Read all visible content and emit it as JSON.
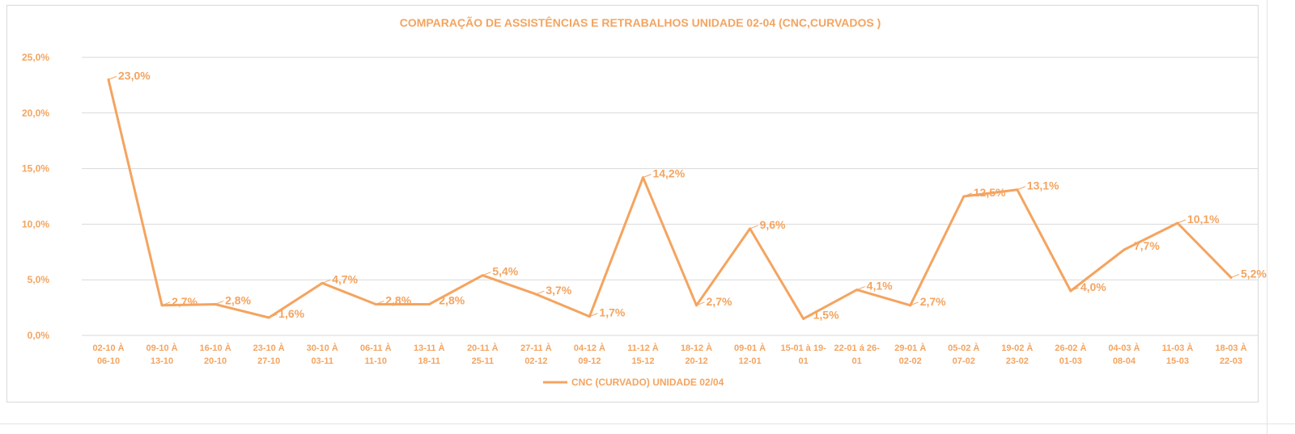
{
  "chart_data": {
    "type": "line",
    "title": "COMPARAÇÃO DE ASSISTÊNCIAS E RETRABALHOS UNIDADE 02-04  (CNC,CURVADOS )",
    "xlabel": "",
    "ylabel": "",
    "ylim": [
      0,
      25
    ],
    "yticks": [
      "0,0%",
      "5,0%",
      "10,0%",
      "15,0%",
      "20,0%",
      "25,0%"
    ],
    "grid": true,
    "legend_position": "bottom",
    "line_color": "#f4a460",
    "categories": [
      [
        "02-10 À",
        "06-10"
      ],
      [
        "09-10 À",
        "13-10"
      ],
      [
        "16-10 À",
        "20-10"
      ],
      [
        "23-10 À",
        "27-10"
      ],
      [
        "30-10 À",
        "03-11"
      ],
      [
        "06-11 À",
        "11-10"
      ],
      [
        "13-11 À",
        "18-11"
      ],
      [
        "20-11 À",
        "25-11"
      ],
      [
        "27-11 À",
        "02-12"
      ],
      [
        "04-12 À",
        "09-12"
      ],
      [
        "11-12 À",
        "15-12"
      ],
      [
        "18-12 À",
        "20-12"
      ],
      [
        "09-01 À",
        "12-01"
      ],
      [
        "15-01 à 19-",
        "01"
      ],
      [
        "22-01 á 26-",
        "01"
      ],
      [
        "29-01 À",
        "02-02"
      ],
      [
        "05-02 À",
        "07-02"
      ],
      [
        "19-02 À",
        "23-02"
      ],
      [
        "26-02 À",
        "01-03"
      ],
      [
        "04-03 À",
        "08-04"
      ],
      [
        "11-03 À",
        "15-03"
      ],
      [
        "18-03 À",
        "22-03"
      ]
    ],
    "series": [
      {
        "name": "CNC (CURVADO) UNIDADE 02/04",
        "values": [
          23.0,
          2.7,
          2.8,
          1.6,
          4.7,
          2.8,
          2.8,
          5.4,
          3.7,
          1.7,
          14.2,
          2.7,
          9.6,
          1.5,
          4.1,
          2.7,
          12.5,
          13.1,
          4.0,
          7.7,
          10.1,
          5.2
        ],
        "labels": [
          "23,0%",
          "2,7%",
          "2,8%",
          "1,6%",
          "4,7%",
          "2,8%",
          "2,8%",
          "5,4%",
          "3,7%",
          "1,7%",
          "14,2%",
          "2,7%",
          "9,6%",
          "1,5%",
          "4,1%",
          "2,7%",
          "12,5%",
          "13,1%",
          "4,0%",
          "7,7%",
          "10,1%",
          "5,2%"
        ]
      }
    ]
  }
}
